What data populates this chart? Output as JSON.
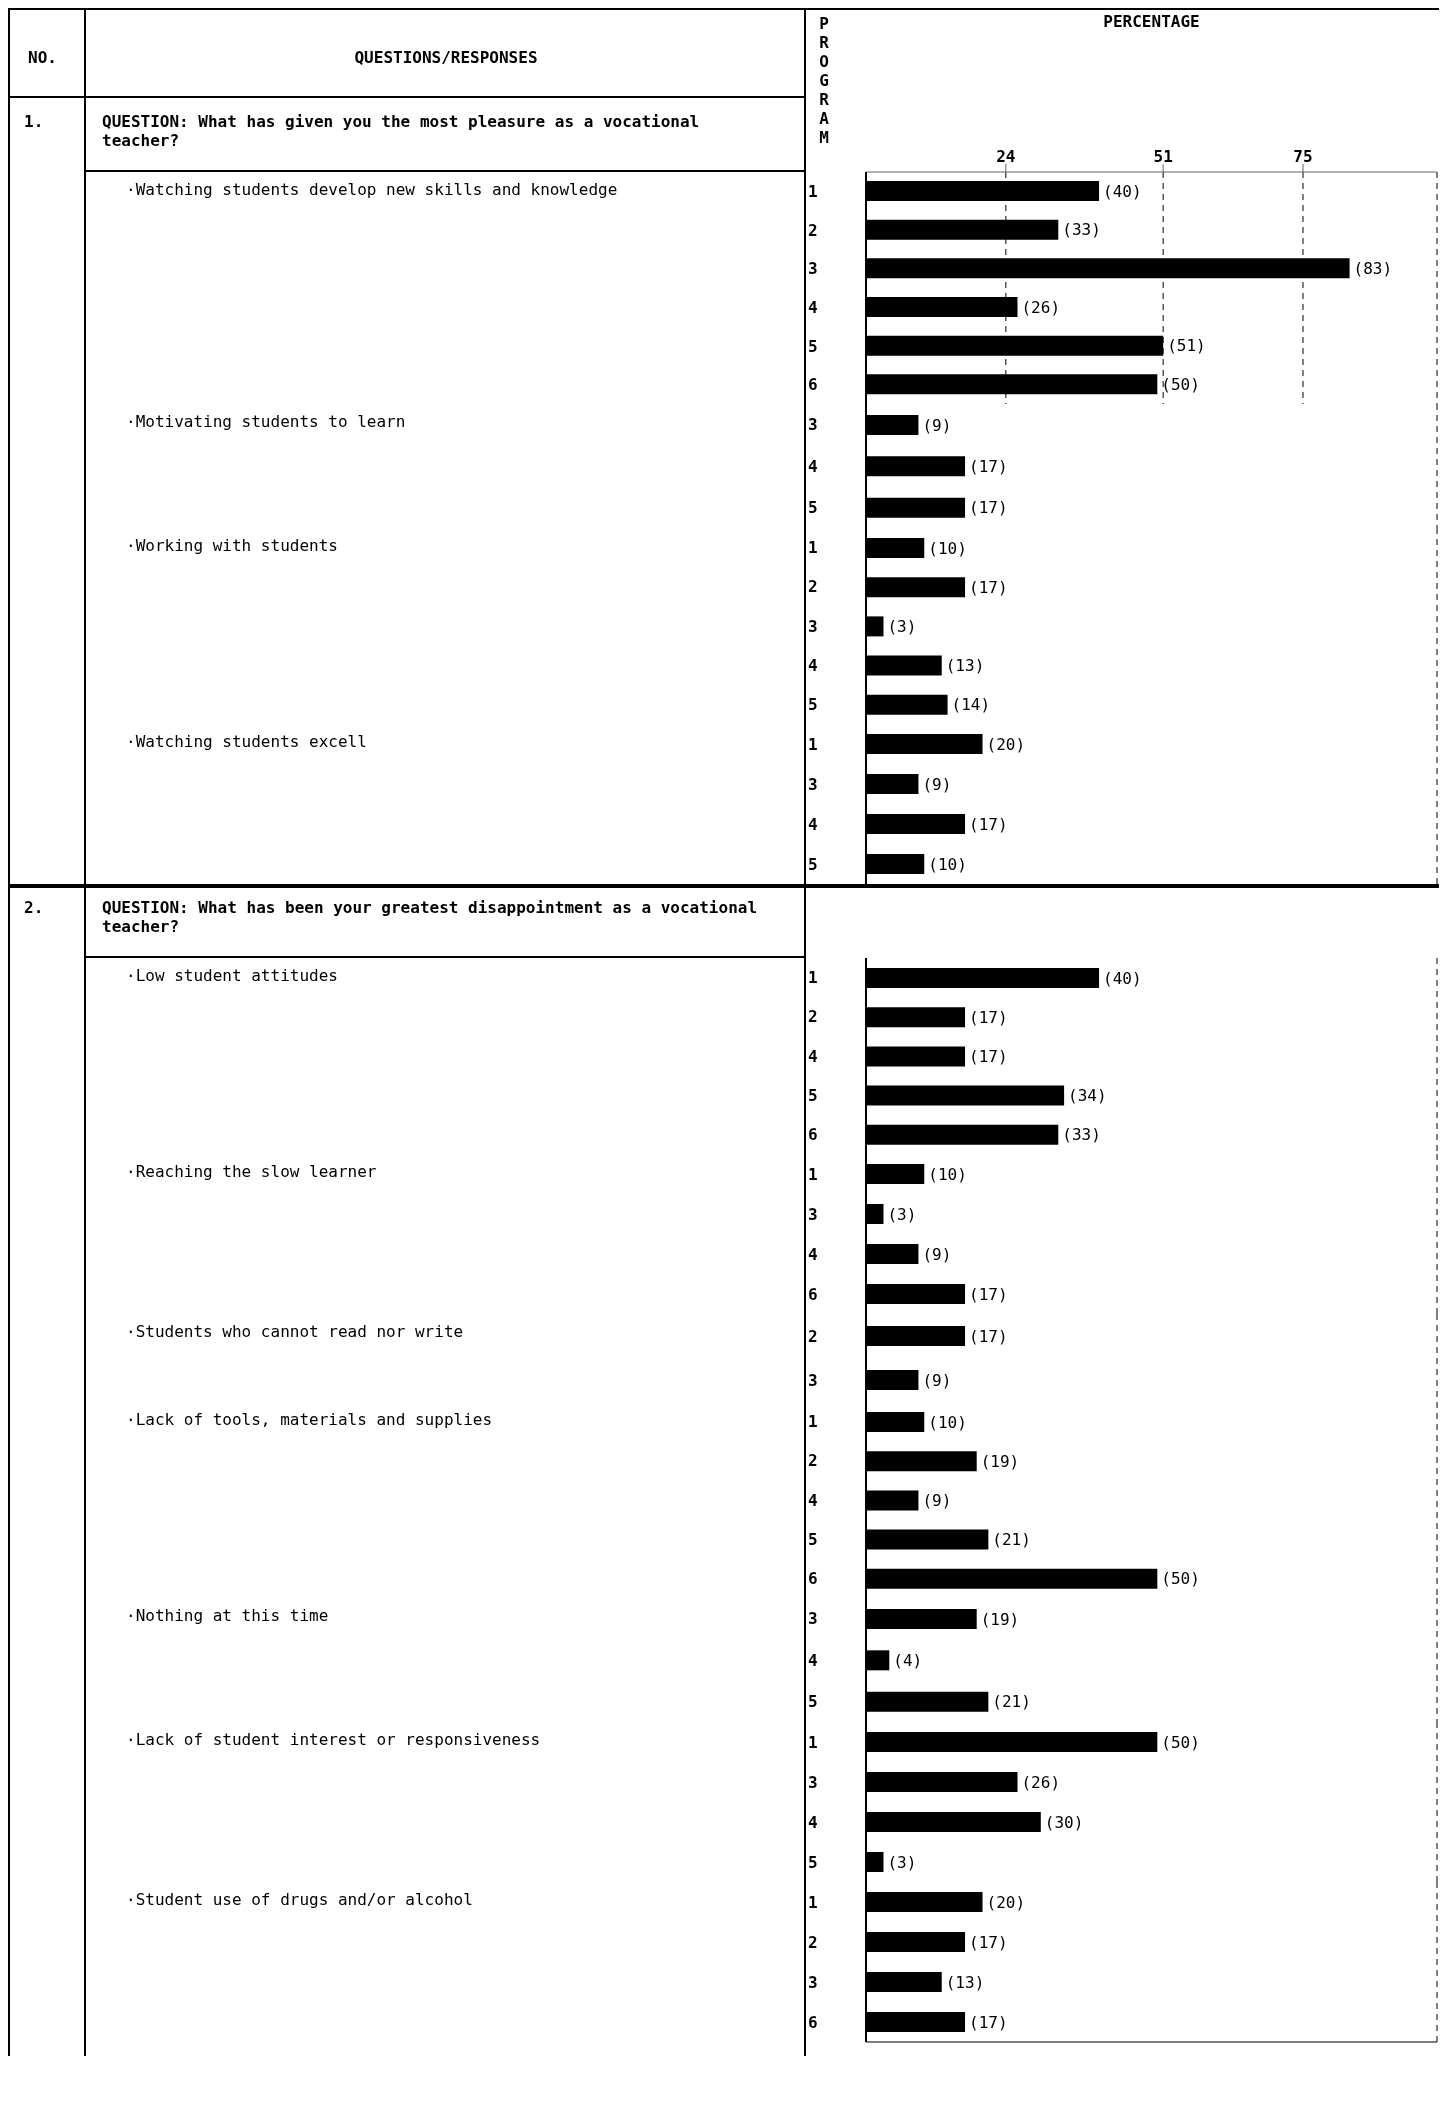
{
  "chart_data": [
    {
      "type": "bar",
      "orientation": "horizontal",
      "ylabel": "·Watching students develop new skills and knowledge",
      "xlabel": "PERCENTAGE",
      "annotations": [
        "NO.",
        "QUESTIONS/RESPONSES",
        "PROGRAM",
        "1.",
        "QUESTION:  What has given you the most pleasure as a vocational teacher?"
      ],
      "categories": [
        "1",
        "2",
        "3",
        "4",
        "5",
        "6"
      ],
      "values": [
        40,
        33,
        83,
        26,
        51,
        50
      ],
      "value_labels": [
        "(40)",
        "(33)",
        "(83)",
        "(26)",
        "(51)",
        "(50)"
      ],
      "color": "#000000",
      "xlim": [
        0,
        98
      ],
      "xticks": [
        24,
        51,
        75
      ],
      "grid": "x"
    },
    {
      "type": "bar",
      "orientation": "horizontal",
      "ylabel": "·Motivating students to learn",
      "categories": [
        "3",
        "4",
        "5"
      ],
      "values": [
        9,
        17,
        17
      ],
      "value_labels": [
        "(9)",
        "(17)",
        "(17)"
      ],
      "color": "#000000",
      "xlim": [
        0,
        98
      ],
      "xticks": [
        24,
        51,
        75
      ],
      "grid": "x",
      "tick_labels": "y"
    },
    {
      "type": "bar",
      "orientation": "horizontal",
      "ylabel": "·Working with students",
      "categories": [
        "1",
        "2",
        "3",
        "4",
        "5"
      ],
      "values": [
        10,
        17,
        3,
        13,
        14
      ],
      "value_labels": [
        "(10)",
        "(17)",
        "(3)",
        "(13)",
        "(14)"
      ],
      "color": "#000000",
      "xlim": [
        0,
        98
      ],
      "xticks": [
        24,
        51,
        75
      ],
      "grid": "x",
      "tick_labels": "y"
    },
    {
      "type": "bar",
      "orientation": "horizontal",
      "ylabel": "·Watching students excell",
      "categories": [
        "1",
        "3",
        "4",
        "5"
      ],
      "values": [
        20,
        9,
        17,
        10
      ],
      "value_labels": [
        "(20)",
        "(9)",
        "(17)",
        "(10)"
      ],
      "color": "#000000",
      "xlim": [
        0,
        98
      ],
      "xticks": [
        24,
        51,
        75
      ],
      "grid": "x",
      "tick_labels": "y"
    },
    {
      "type": "bar",
      "orientation": "horizontal",
      "ylabel": "·Low student attitudes",
      "annotations": [
        "2.",
        "QUESTION:  What has been your greatest disappointment as a vocational teacher?"
      ],
      "categories": [
        "1",
        "2",
        "4",
        "5",
        "6"
      ],
      "values": [
        40,
        17,
        17,
        34,
        33
      ],
      "value_labels": [
        "(40)",
        "(17)",
        "(17)",
        "(34)",
        "(33)"
      ],
      "color": "#000000",
      "xlim": [
        0,
        98
      ],
      "xticks": [
        24,
        51,
        75
      ],
      "grid": "x",
      "tick_labels": "y"
    },
    {
      "type": "bar",
      "orientation": "horizontal",
      "ylabel": "·Reaching the slow learner",
      "categories": [
        "1",
        "3",
        "4",
        "6"
      ],
      "values": [
        10,
        3,
        9,
        17
      ],
      "value_labels": [
        "(10)",
        "(3)",
        "(9)",
        "(17)"
      ],
      "color": "#000000",
      "xlim": [
        0,
        98
      ],
      "xticks": [
        24,
        51,
        75
      ],
      "grid": "x",
      "tick_labels": "y"
    },
    {
      "type": "bar",
      "orientation": "horizontal",
      "ylabel": "·Students who cannot read nor write",
      "categories": [
        "2",
        "3"
      ],
      "values": [
        17,
        9
      ],
      "value_labels": [
        "(17)",
        "(9)"
      ],
      "color": "#000000",
      "xlim": [
        0,
        98
      ],
      "xticks": [
        24,
        51,
        75
      ],
      "grid": "x",
      "tick_labels": "y"
    },
    {
      "type": "bar",
      "orientation": "horizontal",
      "ylabel": "·Lack of tools, materials and supplies",
      "categories": [
        "1",
        "2",
        "4",
        "5",
        "6"
      ],
      "values": [
        10,
        19,
        9,
        21,
        50
      ],
      "value_labels": [
        "(10)",
        "(19)",
        "(9)",
        "(21)",
        "(50)"
      ],
      "color": "#000000",
      "xlim": [
        0,
        98
      ],
      "xticks": [
        24,
        51,
        75
      ],
      "grid": "x",
      "tick_labels": "y"
    },
    {
      "type": "bar",
      "orientation": "horizontal",
      "ylabel": "·Nothing at this time",
      "categories": [
        "3",
        "4",
        "5"
      ],
      "values": [
        19,
        4,
        21
      ],
      "value_labels": [
        "(19)",
        "(4)",
        "(21)"
      ],
      "color": "#000000",
      "xlim": [
        0,
        98
      ],
      "xticks": [
        24,
        51,
        75
      ],
      "grid": "x",
      "tick_labels": "y"
    },
    {
      "type": "bar",
      "orientation": "horizontal",
      "ylabel": "·Lack of student interest or responsiveness",
      "categories": [
        "1",
        "3",
        "4",
        "5"
      ],
      "values": [
        50,
        26,
        30,
        3
      ],
      "value_labels": [
        "(50)",
        "(26)",
        "(30)",
        "(3)"
      ],
      "color": "#000000",
      "xlim": [
        0,
        98
      ],
      "xticks": [
        24,
        51,
        75
      ],
      "grid": "x",
      "tick_labels": "y"
    },
    {
      "type": "bar",
      "orientation": "horizontal",
      "ylabel": "·Student use of drugs and/or alcohol",
      "categories": [
        "1",
        "2",
        "3",
        "6"
      ],
      "values": [
        20,
        17,
        13,
        17
      ],
      "value_labels": [
        "(20)",
        "(17)",
        "(13)",
        "(17)"
      ],
      "color": "#000000",
      "xlim": [
        0,
        98
      ],
      "xticks": [
        24,
        51,
        75
      ],
      "grid": "x",
      "tick_labels": "y"
    }
  ]
}
